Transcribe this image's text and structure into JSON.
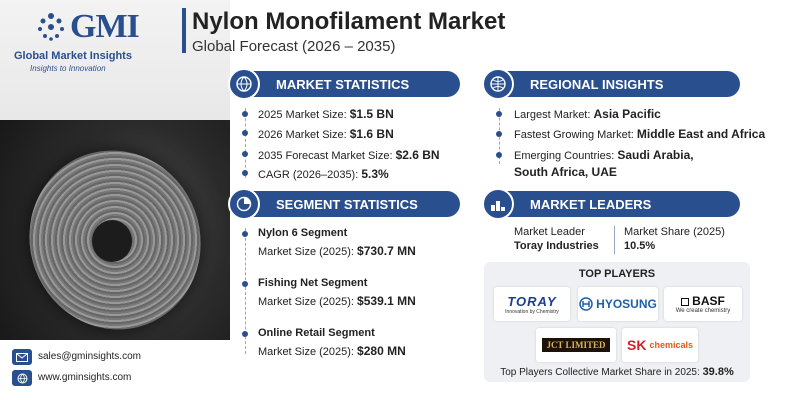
{
  "brand": {
    "name": "Global Market Insights",
    "tagline": "Insights to Innovation",
    "abbrev": "GMI"
  },
  "title": "Nylon Monofilament Market",
  "subtitle": "Global Forecast (2026 – 2035)",
  "market_statistics": {
    "header": "MARKET STATISTICS",
    "items": [
      {
        "label": "2025 Market Size: ",
        "value": "$1.5 BN"
      },
      {
        "label": "2026 Market Size: ",
        "value": "$1.6 BN"
      },
      {
        "label": "2035 Forecast Market Size: ",
        "value": "$2.6 BN"
      },
      {
        "label": "CAGR (2026–2035): ",
        "value": "5.3%"
      }
    ]
  },
  "regional_insights": {
    "header": "REGIONAL INSIGHTS",
    "largest_label": "Largest Market: ",
    "largest_value": "Asia Pacific",
    "fastest_label": "Fastest Growing Market: ",
    "fastest_value": "Middle East and Africa",
    "emerging_label": "Emerging Countries: ",
    "emerging_value_1": "Saudi Arabia,",
    "emerging_value_2": "South Africa, UAE"
  },
  "segment_statistics": {
    "header": "SEGMENT STATISTICS",
    "items": [
      {
        "name": "Nylon 6 Segment",
        "label": "Market Size (2025): ",
        "value": "$730.7 MN"
      },
      {
        "name": "Fishing Net Segment",
        "label": "Market Size (2025): ",
        "value": "$539.1 MN"
      },
      {
        "name": "Online Retail Segment",
        "label": "Market Size (2025): ",
        "value": "$280 MN"
      }
    ]
  },
  "market_leaders": {
    "header": "MARKET LEADERS",
    "leader_label": "Market Leader",
    "leader_value": "Toray Industries",
    "share_label": "Market Share (2025)",
    "share_value": "10.5%"
  },
  "top_players": {
    "title": "TOP PLAYERS",
    "toray": {
      "name": "TORAY",
      "tagline": "Innovation by Chemistry"
    },
    "hyosung": {
      "name": "HYOSUNG"
    },
    "basf": {
      "name": "BASF",
      "tagline": "We create chemistry"
    },
    "jct": {
      "name": "JCT LIMITED"
    },
    "sk": {
      "name": "SK",
      "sub": "chemicals"
    },
    "share_label": "Top Players Collective Market Share in 2025: ",
    "share_value": "39.8%"
  },
  "contact": {
    "email": "sales@gminsights.com",
    "website": "www.gminsights.com"
  },
  "colors": {
    "accent": "#2a4f8f"
  }
}
